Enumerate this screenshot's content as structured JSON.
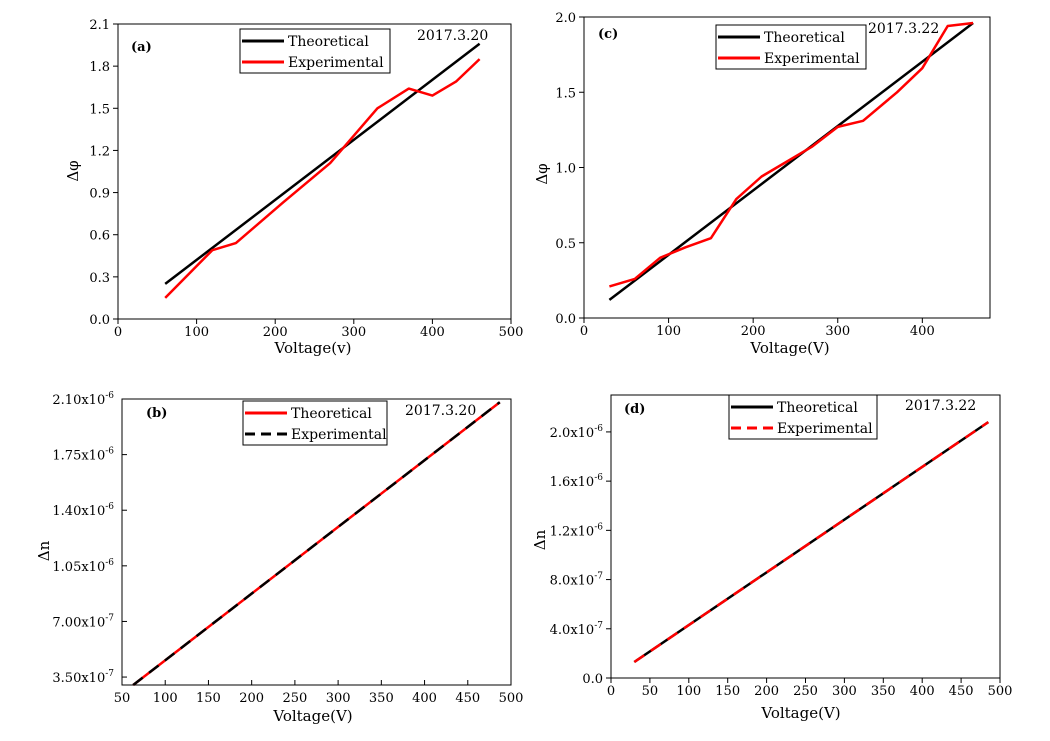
{
  "chart_data": [
    {
      "id": "a",
      "type": "line",
      "panel_label": "(a)",
      "date": "2017.3.20",
      "xlabel": "Voltage(v)",
      "ylabel": "Δφ",
      "xlim": [
        0,
        500
      ],
      "ylim": [
        0.0,
        2.1
      ],
      "xticks": [
        0,
        100,
        200,
        300,
        400,
        500
      ],
      "xtick_labels": [
        "0",
        "100",
        "200",
        "300",
        "400",
        "500"
      ],
      "yticks": [
        0.0,
        0.3,
        0.6,
        0.9,
        1.2,
        1.5,
        1.8,
        2.1
      ],
      "ytick_labels": [
        "0.0",
        "0.3",
        "0.6",
        "0.9",
        "1.2",
        "1.5",
        "1.8",
        "2.1"
      ],
      "legend_position": "top-center",
      "series": [
        {
          "name": "Theoretical",
          "color": "#000000",
          "dash": false,
          "x": [
            60,
            460
          ],
          "y": [
            0.25,
            1.96
          ]
        },
        {
          "name": "Experimental",
          "color": "#ff0000",
          "dash": false,
          "x": [
            60,
            120,
            150,
            210,
            270,
            330,
            370,
            400,
            430,
            460
          ],
          "y": [
            0.15,
            0.49,
            0.54,
            0.83,
            1.11,
            1.5,
            1.64,
            1.59,
            1.69,
            1.85
          ]
        }
      ]
    },
    {
      "id": "c",
      "type": "line",
      "panel_label": "(c)",
      "date": "2017.3.22",
      "xlabel": "Voltage(V)",
      "ylabel": "Δφ",
      "xlim": [
        0,
        480
      ],
      "ylim": [
        0.0,
        2.0
      ],
      "xticks": [
        0,
        100,
        200,
        300,
        400
      ],
      "xtick_labels": [
        "0",
        "100",
        "200",
        "300",
        "400"
      ],
      "yticks": [
        0.0,
        0.5,
        1.0,
        1.5,
        2.0
      ],
      "ytick_labels": [
        "0.0",
        "0.5",
        "1.0",
        "1.5",
        "2.0"
      ],
      "legend_position": "top-center",
      "series": [
        {
          "name": "Theoretical",
          "color": "#000000",
          "dash": false,
          "x": [
            30,
            460
          ],
          "y": [
            0.12,
            1.96
          ]
        },
        {
          "name": "Experimental",
          "color": "#ff0000",
          "dash": false,
          "x": [
            30,
            60,
            90,
            120,
            150,
            180,
            210,
            240,
            270,
            300,
            330,
            370,
            400,
            430,
            460
          ],
          "y": [
            0.21,
            0.26,
            0.4,
            0.47,
            0.53,
            0.79,
            0.94,
            1.04,
            1.14,
            1.27,
            1.31,
            1.5,
            1.66,
            1.94,
            1.96
          ]
        }
      ]
    },
    {
      "id": "b",
      "type": "line",
      "panel_label": "(b)",
      "date": "2017.3.20",
      "xlabel": "Voltage(V)",
      "ylabel": "Δn",
      "xlim": [
        50,
        500
      ],
      "ylim": [
        3e-07,
        2.1e-06
      ],
      "xticks": [
        50,
        100,
        150,
        200,
        250,
        300,
        350,
        400,
        450,
        500
      ],
      "xtick_labels": [
        "50",
        "100",
        "150",
        "200",
        "250",
        "300",
        "350",
        "400",
        "450",
        "500"
      ],
      "yticks": [
        3.5e-07,
        7e-07,
        1.05e-06,
        1.4e-06,
        1.75e-06,
        2.1e-06
      ],
      "ytick_labels": [
        {
          "mantissa": "3.50x10",
          "exp": "-7"
        },
        {
          "mantissa": "7.00x10",
          "exp": "-7"
        },
        {
          "mantissa": "1.05x10",
          "exp": "-6"
        },
        {
          "mantissa": "1.40x10",
          "exp": "-6"
        },
        {
          "mantissa": "1.75x10",
          "exp": "-6"
        },
        {
          "mantissa": "2.10x10",
          "exp": "-6"
        }
      ],
      "legend_position": "top-center",
      "series": [
        {
          "name": "Theoretical",
          "color": "#ff0000",
          "dash": false,
          "x": [
            63,
            487
          ],
          "y": [
            3e-07,
            2.08e-06
          ]
        },
        {
          "name": "Experimental",
          "color": "#000000",
          "dash": true,
          "x": [
            63,
            487
          ],
          "y": [
            3e-07,
            2.08e-06
          ]
        }
      ]
    },
    {
      "id": "d",
      "type": "line",
      "panel_label": "(d)",
      "date": "2017.3.22",
      "xlabel": "Voltage(V)",
      "ylabel": "Δn",
      "xlim": [
        0,
        500
      ],
      "ylim": [
        0.0,
        2.3e-06
      ],
      "xticks": [
        0,
        50,
        100,
        150,
        200,
        250,
        300,
        350,
        400,
        450,
        500
      ],
      "xtick_labels": [
        "0",
        "50",
        "100",
        "150",
        "200",
        "250",
        "300",
        "350",
        "400",
        "450",
        "500"
      ],
      "yticks": [
        0.0,
        4e-07,
        8e-07,
        1.2e-06,
        1.6e-06,
        2e-06
      ],
      "ytick_labels": [
        {
          "mantissa": "0.0",
          "exp": ""
        },
        {
          "mantissa": "4.0x10",
          "exp": "-7"
        },
        {
          "mantissa": "8.0x10",
          "exp": "-7"
        },
        {
          "mantissa": "1.2x10",
          "exp": "-6"
        },
        {
          "mantissa": "1.6x10",
          "exp": "-6"
        },
        {
          "mantissa": "2.0x10",
          "exp": "-6"
        }
      ],
      "legend_position": "top-center",
      "series": [
        {
          "name": "Theoretical",
          "color": "#000000",
          "dash": false,
          "x": [
            30,
            485
          ],
          "y": [
            1.3e-07,
            2.08e-06
          ]
        },
        {
          "name": "Experimental",
          "color": "#ff0000",
          "dash": true,
          "x": [
            30,
            485
          ],
          "y": [
            1.3e-07,
            2.08e-06
          ]
        }
      ]
    }
  ]
}
